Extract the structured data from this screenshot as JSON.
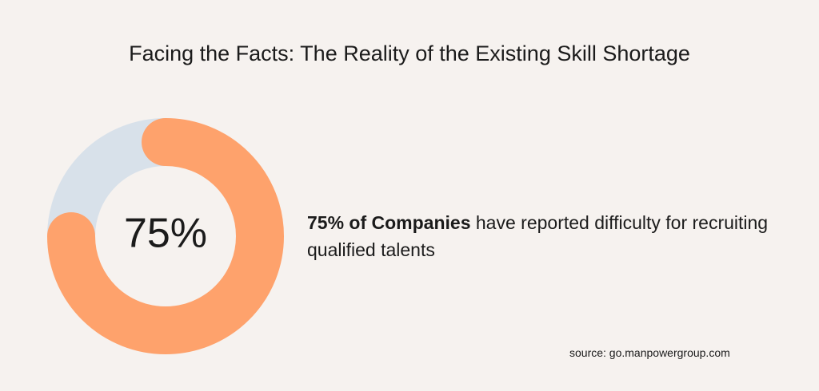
{
  "chart_data": {
    "type": "donut",
    "title": "Facing the Facts: The Reality of the Existing Skill Shortage",
    "values": [
      75,
      25
    ],
    "value_labels": [
      "75%",
      null
    ],
    "colors": [
      "#fea26c",
      "#d8e1ea"
    ],
    "highlight": "75% of Companies",
    "annotation": "have reported difficulty for recruiting qualified talents",
    "source": "source: go.manpowergroup.com"
  }
}
